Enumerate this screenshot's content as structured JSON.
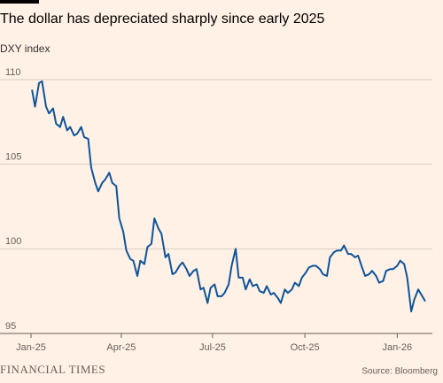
{
  "chart_data": {
    "type": "line",
    "title": "The dollar has depreciated sharply since early 2025",
    "subtitle": "DXY index",
    "source": "Source: Bloomberg",
    "branding": "FINANCIAL TIMES",
    "x": [
      "2025-01-02",
      "2025-01-05",
      "2025-01-09",
      "2025-01-12",
      "2025-01-16",
      "2025-01-19",
      "2025-01-23",
      "2025-01-26",
      "2025-01-30",
      "2025-02-02",
      "2025-02-06",
      "2025-02-09",
      "2025-02-13",
      "2025-02-16",
      "2025-02-20",
      "2025-02-23",
      "2025-02-27",
      "2025-03-02",
      "2025-03-06",
      "2025-03-09",
      "2025-03-13",
      "2025-03-16",
      "2025-03-20",
      "2025-03-23",
      "2025-03-27",
      "2025-03-30",
      "2025-04-03",
      "2025-04-06",
      "2025-04-10",
      "2025-04-13",
      "2025-04-17",
      "2025-04-20",
      "2025-04-24",
      "2025-04-27",
      "2025-05-01",
      "2025-05-04",
      "2025-05-08",
      "2025-05-11",
      "2025-05-15",
      "2025-05-18",
      "2025-05-22",
      "2025-05-25",
      "2025-05-29",
      "2025-06-01",
      "2025-06-05",
      "2025-06-08",
      "2025-06-12",
      "2025-06-15",
      "2025-06-19",
      "2025-06-22",
      "2025-06-26",
      "2025-06-29",
      "2025-07-03",
      "2025-07-06",
      "2025-07-10",
      "2025-07-13",
      "2025-07-17",
      "2025-07-20",
      "2025-07-24",
      "2025-07-27",
      "2025-07-31",
      "2025-08-03",
      "2025-08-07",
      "2025-08-10",
      "2025-08-14",
      "2025-08-17",
      "2025-08-21",
      "2025-08-24",
      "2025-08-28",
      "2025-08-31",
      "2025-09-04",
      "2025-09-07",
      "2025-09-11",
      "2025-09-14",
      "2025-09-18",
      "2025-09-21",
      "2025-09-25",
      "2025-09-28",
      "2025-10-02",
      "2025-10-05",
      "2025-10-09",
      "2025-10-12",
      "2025-10-16",
      "2025-10-19",
      "2025-10-23",
      "2025-10-26",
      "2025-10-30",
      "2025-11-02",
      "2025-11-06",
      "2025-11-09",
      "2025-11-13",
      "2025-11-16",
      "2025-11-20",
      "2025-11-23",
      "2025-11-27",
      "2025-11-30",
      "2025-12-04",
      "2025-12-07",
      "2025-12-11",
      "2025-12-14",
      "2025-12-18",
      "2025-12-21",
      "2025-12-25",
      "2025-12-28",
      "2026-01-01",
      "2026-01-04",
      "2026-01-08",
      "2026-01-11",
      "2026-01-15",
      "2026-01-18",
      "2026-01-22",
      "2026-01-25",
      "2026-01-29"
    ],
    "series": [
      {
        "name": "DXY",
        "color": "#0f5499",
        "values": [
          109.4,
          108.4,
          109.8,
          109.9,
          108.4,
          108.0,
          108.3,
          107.4,
          107.2,
          107.8,
          107.0,
          107.2,
          106.7,
          106.8,
          107.2,
          106.6,
          106.5,
          104.8,
          103.9,
          103.4,
          103.9,
          104.1,
          104.5,
          103.9,
          103.7,
          101.8,
          101.0,
          99.9,
          99.4,
          99.3,
          98.4,
          99.3,
          99.1,
          100.1,
          100.3,
          101.8,
          101.2,
          100.9,
          99.5,
          99.7,
          98.5,
          98.6,
          99.0,
          99.2,
          98.8,
          98.4,
          98.7,
          98.8,
          97.6,
          97.7,
          96.8,
          97.7,
          97.9,
          97.2,
          97.2,
          97.4,
          97.9,
          99.0,
          100.0,
          98.3,
          98.3,
          97.6,
          98.2,
          97.8,
          97.9,
          97.5,
          97.4,
          97.8,
          97.3,
          97.4,
          97.1,
          96.8,
          97.6,
          97.4,
          97.6,
          98.0,
          97.8,
          98.3,
          98.6,
          98.9,
          99.0,
          99.0,
          98.8,
          98.5,
          98.4,
          99.5,
          99.8,
          99.9,
          99.9,
          100.2,
          99.7,
          99.7,
          99.5,
          99.6,
          98.9,
          98.4,
          98.5,
          98.7,
          98.4,
          98.0,
          98.1,
          98.7,
          98.8,
          98.8,
          99.0,
          99.3,
          99.1,
          98.3,
          96.3,
          97.0,
          97.6,
          97.3,
          96.9
        ]
      }
    ],
    "xlim": [
      "2025-01-01",
      "2026-01-29"
    ],
    "xticks": [
      {
        "value": "2025-01-01",
        "label": "Jan-25"
      },
      {
        "value": "2025-04-01",
        "label": "Apr-25"
      },
      {
        "value": "2025-07-01",
        "label": "Jul-25"
      },
      {
        "value": "2025-10-01",
        "label": "Oct-25"
      },
      {
        "value": "2026-01-01",
        "label": "Jan-26"
      }
    ],
    "ylim": [
      95,
      110
    ],
    "yticks": [
      95,
      100,
      105,
      110
    ],
    "grid": true
  }
}
